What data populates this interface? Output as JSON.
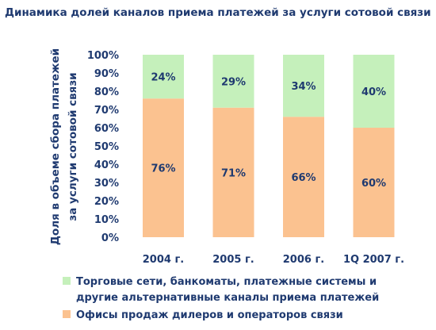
{
  "chart_data": {
    "type": "bar",
    "stacked": true,
    "title": "Динамика долей каналов приема платежей за услуги сотовой связи",
    "ylabel_lines": [
      "Доля в объеме сбора платежей",
      "за услуги сотовой связи"
    ],
    "xlabel": "",
    "categories": [
      "2004 г.",
      "2005 г.",
      "2006 г.",
      "1Q 2007 г."
    ],
    "ylim": [
      0,
      100
    ],
    "yticks": [
      "0%",
      "10%",
      "20%",
      "30%",
      "40%",
      "50%",
      "60%",
      "70%",
      "80%",
      "90%",
      "100%"
    ],
    "series": [
      {
        "name": "Офисы продаж дилеров и операторов связи",
        "values": [
          76,
          71,
          66,
          60
        ],
        "labels": [
          "76%",
          "71%",
          "66%",
          "60%"
        ],
        "color": "#fbc290"
      },
      {
        "name_lines": [
          "Торговые сети, банкоматы, платежные системы и",
          "другие альтернативные каналы приема платежей"
        ],
        "values": [
          24,
          29,
          34,
          40
        ],
        "labels": [
          "24%",
          "29%",
          "34%",
          "40%"
        ],
        "color": "#c5f0bb"
      }
    ],
    "legend_position": "bottom-left",
    "grid": false
  }
}
